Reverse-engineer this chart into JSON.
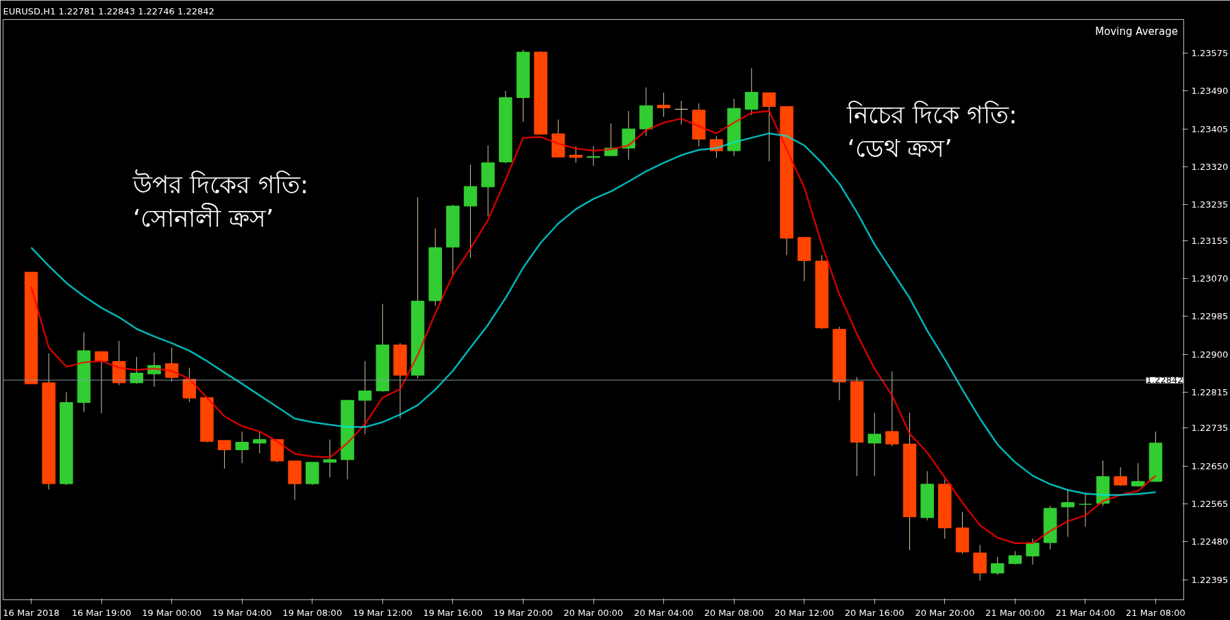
{
  "chart_data": {
    "type": "candlestick",
    "title": "EURUSD,H1  1.22781 1.22843 1.22746 1.22842",
    "categories": [
      "16 Mar 2018",
      null,
      null,
      null,
      "16 Mar 19:00",
      null,
      null,
      null,
      "19 Mar 00:00",
      null,
      null,
      null,
      "19 Mar 04:00",
      null,
      null,
      null,
      "19 Mar 08:00",
      null,
      null,
      null,
      "19 Mar 12:00",
      null,
      null,
      null,
      "19 Mar 16:00",
      null,
      null,
      null,
      "19 Mar 20:00",
      null,
      null,
      null,
      "20 Mar 00:00",
      null,
      null,
      null,
      "20 Mar 04:00",
      null,
      null,
      null,
      "20 Mar 08:00",
      null,
      null,
      null,
      "20 Mar 12:00",
      null,
      null,
      null,
      "20 Mar 16:00",
      null,
      null,
      null,
      "20 Mar 20:00",
      null,
      null,
      null,
      "21 Mar 00:00",
      null,
      null,
      null,
      "21 Mar 04:00",
      null,
      null,
      null,
      "21 Mar 08:00"
    ],
    "ohlc": [
      [
        1.23084,
        1.23084,
        1.22834,
        1.22834
      ],
      [
        1.22836,
        1.22902,
        1.22597,
        1.2261
      ],
      [
        1.2261,
        1.22815,
        1.22607,
        1.22792
      ],
      [
        1.22792,
        1.22949,
        1.22771,
        1.22908
      ],
      [
        1.22906,
        1.22906,
        1.22768,
        1.22885
      ],
      [
        1.22884,
        1.2293,
        1.22831,
        1.22836
      ],
      [
        1.22836,
        1.22894,
        1.22834,
        1.22858
      ],
      [
        1.22856,
        1.22904,
        1.22827,
        1.22875
      ],
      [
        1.22879,
        1.22915,
        1.22839,
        1.22848
      ],
      [
        1.22844,
        1.2287,
        1.22793,
        1.22802
      ],
      [
        1.22803,
        1.22803,
        1.22703,
        1.22705
      ],
      [
        1.22707,
        1.22707,
        1.22644,
        1.22686
      ],
      [
        1.22686,
        1.22727,
        1.22656,
        1.22703
      ],
      [
        1.22701,
        1.22727,
        1.22678,
        1.22709
      ],
      [
        1.22709,
        1.22709,
        1.22658,
        1.22661
      ],
      [
        1.22661,
        1.22661,
        1.22574,
        1.2261
      ],
      [
        1.2261,
        1.22658,
        1.22607,
        1.22658
      ],
      [
        1.22658,
        1.22709,
        1.22624,
        1.22664
      ],
      [
        1.22664,
        1.22797,
        1.2262,
        1.22797
      ],
      [
        1.22797,
        1.22885,
        1.22721,
        1.22818
      ],
      [
        1.22818,
        1.23013,
        1.22816,
        1.22921
      ],
      [
        1.22921,
        1.22925,
        1.22756,
        1.22853
      ],
      [
        1.22853,
        1.23252,
        1.22846,
        1.23019
      ],
      [
        1.2302,
        1.23182,
        1.23009,
        1.23139
      ],
      [
        1.2314,
        1.23235,
        1.23075,
        1.23232
      ],
      [
        1.23232,
        1.23325,
        1.23116,
        1.23276
      ],
      [
        1.23275,
        1.23368,
        1.23209,
        1.23329
      ],
      [
        1.23331,
        1.2349,
        1.23328,
        1.23475
      ],
      [
        1.23475,
        1.23582,
        1.23421,
        1.23577
      ],
      [
        1.23577,
        1.23579,
        1.23393,
        1.23393
      ],
      [
        1.23394,
        1.23426,
        1.23342,
        1.23342
      ],
      [
        1.23346,
        1.23366,
        1.23329,
        1.23341
      ],
      [
        1.23341,
        1.23366,
        1.23322,
        1.23343
      ],
      [
        1.23345,
        1.23417,
        1.23345,
        1.23362
      ],
      [
        1.23362,
        1.23445,
        1.23336,
        1.23405
      ],
      [
        1.23405,
        1.23498,
        1.23389,
        1.23457
      ],
      [
        1.23458,
        1.23486,
        1.23432,
        1.23452
      ],
      [
        1.23449,
        1.23468,
        1.23415,
        1.23449
      ],
      [
        1.23447,
        1.23462,
        1.23366,
        1.23382
      ],
      [
        1.23381,
        1.23389,
        1.2334,
        1.23356
      ],
      [
        1.23356,
        1.23472,
        1.23344,
        1.23451
      ],
      [
        1.23449,
        1.23541,
        1.23436,
        1.23487
      ],
      [
        1.23486,
        1.23486,
        1.23332,
        1.23455
      ],
      [
        1.23455,
        1.23455,
        1.23122,
        1.2316
      ],
      [
        1.23162,
        1.23162,
        1.23064,
        1.2311
      ],
      [
        1.23109,
        1.23122,
        1.22957,
        1.22959
      ],
      [
        1.22956,
        1.22962,
        1.22797,
        1.22838
      ],
      [
        1.22839,
        1.22849,
        1.22627,
        1.22703
      ],
      [
        1.22701,
        1.22769,
        1.22627,
        1.22721
      ],
      [
        1.22727,
        1.22862,
        1.22694,
        1.22699
      ],
      [
        1.22699,
        1.22769,
        1.22461,
        1.22536
      ],
      [
        1.22534,
        1.22638,
        1.22528,
        1.22609
      ],
      [
        1.22609,
        1.2262,
        1.22487,
        1.22511
      ],
      [
        1.22511,
        1.22547,
        1.22453,
        1.22457
      ],
      [
        1.22455,
        1.22473,
        1.22393,
        1.2241
      ],
      [
        1.2241,
        1.22446,
        1.22406,
        1.22431
      ],
      [
        1.22431,
        1.22459,
        1.22429,
        1.22449
      ],
      [
        1.22448,
        1.22487,
        1.22429,
        1.22477
      ],
      [
        1.22478,
        1.2256,
        1.22463,
        1.22555
      ],
      [
        1.22558,
        1.22597,
        1.22491,
        1.22568
      ],
      [
        1.22564,
        1.2259,
        1.22514,
        1.22564
      ],
      [
        1.22566,
        1.22662,
        1.2256,
        1.22626
      ],
      [
        1.22626,
        1.22647,
        1.22605,
        1.22607
      ],
      [
        1.22605,
        1.22656,
        1.22603,
        1.22615
      ],
      [
        1.22615,
        1.22727,
        1.22614,
        1.22701
      ]
    ],
    "colors": [
      "#ff4500",
      "#ff4500",
      "#32cd32",
      "#32cd32",
      "#ff4500",
      "#ff4500",
      "#32cd32",
      "#32cd32",
      "#ff4500",
      "#ff4500",
      "#ff4500",
      "#ff4500",
      "#32cd32",
      "#32cd32",
      "#ff4500",
      "#ff4500",
      "#32cd32",
      "#32cd32",
      "#32cd32",
      "#32cd32",
      "#32cd32",
      "#ff4500",
      "#32cd32",
      "#32cd32",
      "#32cd32",
      "#32cd32",
      "#32cd32",
      "#32cd32",
      "#32cd32",
      "#ff4500",
      "#ff4500",
      "#ff4500",
      "#32cd32",
      "#32cd32",
      "#32cd32",
      "#32cd32",
      "#ff4500",
      "#f5deb3",
      "#ff4500",
      "#ff4500",
      "#32cd32",
      "#32cd32",
      "#ff4500",
      "#ff4500",
      "#ff4500",
      "#ff4500",
      "#ff4500",
      "#ff4500",
      "#32cd32",
      "#ff4500",
      "#ff4500",
      "#32cd32",
      "#ff4500",
      "#ff4500",
      "#ff4500",
      "#32cd32",
      "#32cd32",
      "#32cd32",
      "#32cd32",
      "#32cd32",
      "#32cd32",
      "#32cd32",
      "#ff4500",
      "#32cd32",
      "#32cd32"
    ],
    "series": [
      {
        "type": "line",
        "color": "#ff0000",
        "values": [
          1.23051,
          1.22915,
          1.22872,
          1.22882,
          1.22885,
          1.2287,
          1.22865,
          1.22868,
          1.22863,
          1.22845,
          1.22803,
          1.22761,
          1.22739,
          1.22727,
          1.22705,
          1.22677,
          1.22671,
          1.22669,
          1.22701,
          1.22744,
          1.22803,
          1.22822,
          1.22898,
          1.22992,
          1.23077,
          1.23137,
          1.23201,
          1.23291,
          1.23385,
          1.23387,
          1.23372,
          1.23361,
          1.23356,
          1.23359,
          1.23368,
          1.23402,
          1.23419,
          1.23428,
          1.23411,
          1.23395,
          1.23419,
          1.23441,
          1.23445,
          1.23359,
          1.23274,
          1.23146,
          1.23034,
          1.22945,
          1.22868,
          1.22808,
          1.22722,
          1.2268,
          1.22624,
          1.22568,
          1.22517,
          1.22489,
          1.22477,
          1.22477,
          1.22504,
          1.22526,
          1.22539,
          1.22571,
          1.22585,
          1.22594,
          1.22628
        ]
      },
      {
        "type": "line",
        "color": "#00e5e5",
        "values": [
          1.23139,
          1.23098,
          1.2306,
          1.2303,
          1.23004,
          1.22983,
          1.22957,
          1.2294,
          1.22925,
          1.22908,
          1.22885,
          1.22859,
          1.22834,
          1.22808,
          1.22782,
          1.22756,
          1.22748,
          1.22742,
          1.22737,
          1.22737,
          1.22748,
          1.22765,
          1.22786,
          1.22821,
          1.22863,
          1.22915,
          1.22966,
          1.23026,
          1.23094,
          1.2315,
          1.23193,
          1.23225,
          1.23248,
          1.23265,
          1.23287,
          1.2331,
          1.23329,
          1.23346,
          1.23358,
          1.23362,
          1.23375,
          1.23385,
          1.23395,
          1.23389,
          1.23368,
          1.23329,
          1.23282,
          1.23218,
          1.23146,
          1.23086,
          1.23026,
          1.22953,
          1.22889,
          1.22821,
          1.22756,
          1.22698,
          1.22658,
          1.22628,
          1.22609,
          1.22596,
          1.22588,
          1.22585,
          1.22585,
          1.22587,
          1.22591
        ]
      }
    ],
    "ylim": [
      1.2235,
      1.2365
    ],
    "yticks": [
      {
        "value": 1.23575,
        "label": "1.23575"
      },
      {
        "value": 1.2349,
        "label": "1.23490"
      },
      {
        "value": 1.23405,
        "label": "1.23405"
      },
      {
        "value": 1.2332,
        "label": "1.23320"
      },
      {
        "value": 1.23235,
        "label": "1.23235"
      },
      {
        "value": 1.23155,
        "label": "1.23155"
      },
      {
        "value": 1.2307,
        "label": "1.23070"
      },
      {
        "value": 1.22985,
        "label": "1.22985"
      },
      {
        "value": 1.229,
        "label": "1.22900"
      },
      {
        "value": 1.22815,
        "label": "1.22815"
      },
      {
        "value": 1.22735,
        "label": "1.22735"
      },
      {
        "value": 1.2265,
        "label": "1.22650"
      },
      {
        "value": 1.22565,
        "label": "1.22565"
      },
      {
        "value": 1.2248,
        "label": "1.22480"
      },
      {
        "value": 1.22395,
        "label": "1.22395"
      }
    ],
    "ref_lines": [
      {
        "axis": "y",
        "value": 1.22842,
        "label": "1.22842",
        "color": "#8c9aa8"
      }
    ],
    "annotations": [
      "Moving Average",
      "উপর দিকের গতি:\n‘সোনালী ক্রস’",
      "নিচের দিকে গতি:\n‘ডেথ ক্রস’"
    ],
    "grid": false
  }
}
